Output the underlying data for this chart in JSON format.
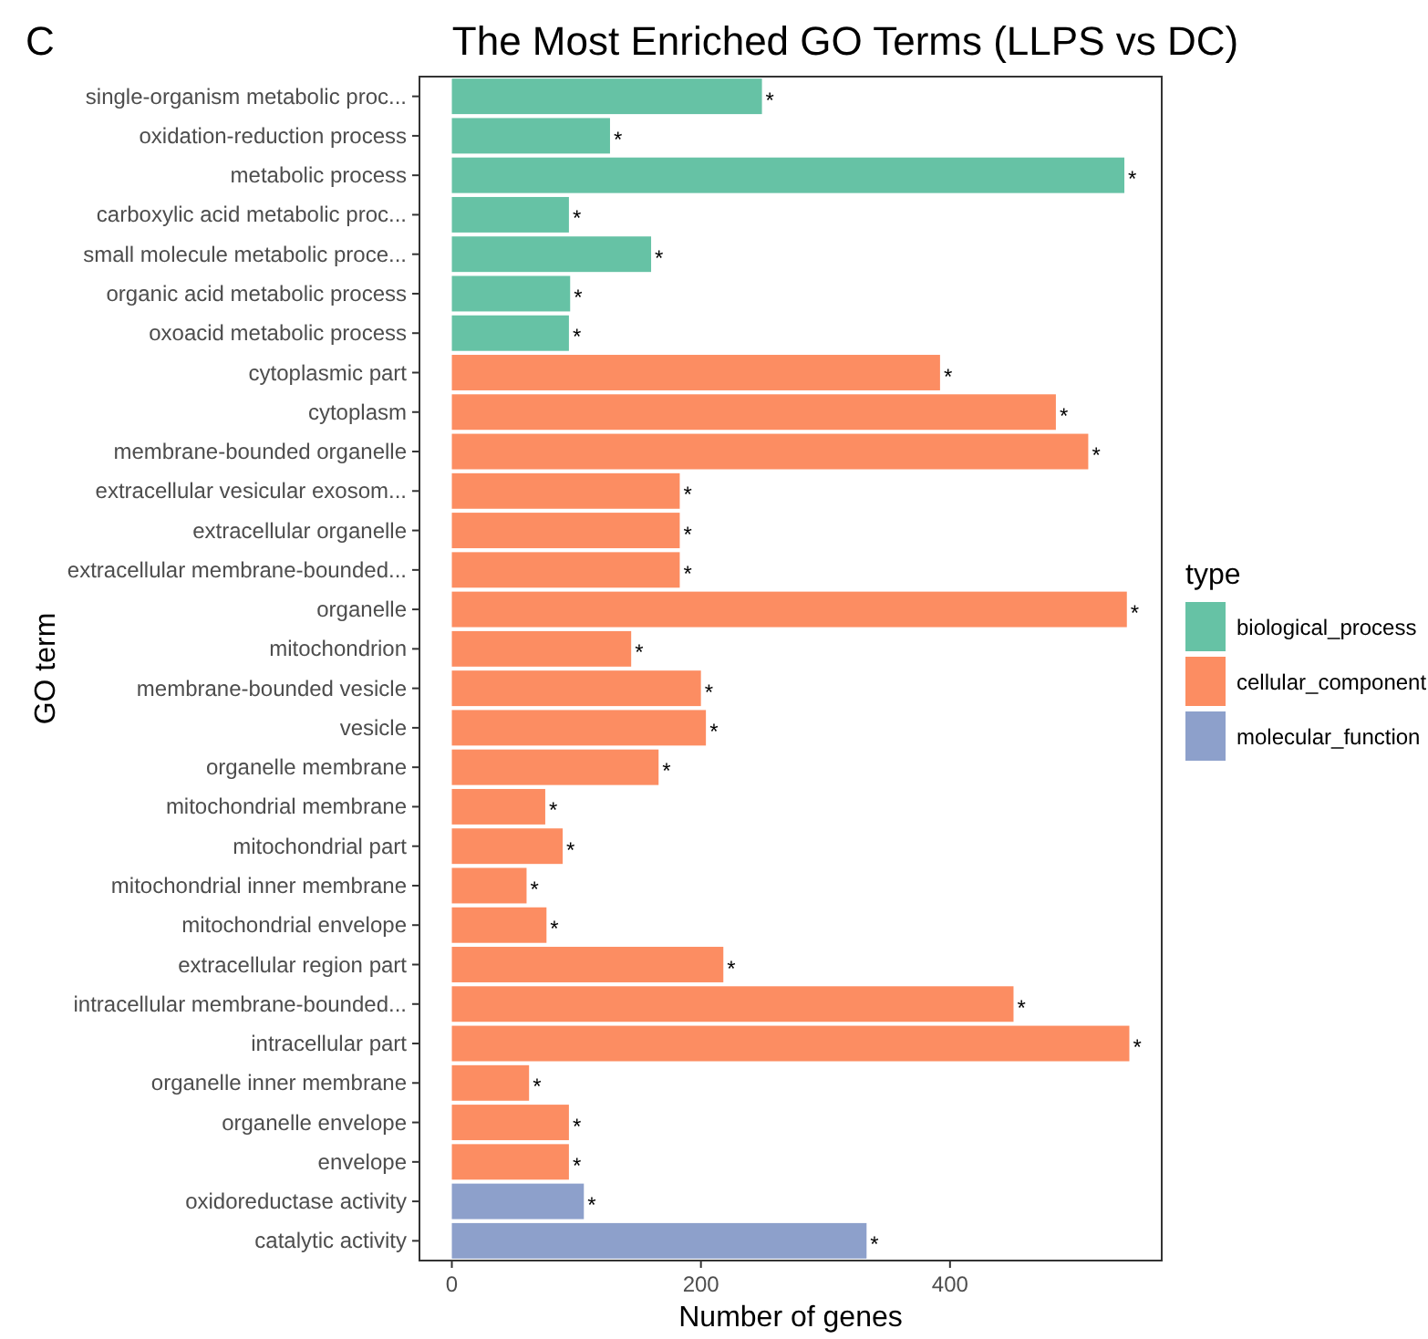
{
  "chart_data": {
    "type": "bar",
    "orientation": "horizontal",
    "title": "The Most Enriched GO Terms (LLPS vs DC)",
    "xlabel": "Number of genes",
    "ylabel": "GO term",
    "legend_title": "type",
    "legend": "right",
    "grid": false,
    "annotations": [
      "C"
    ],
    "categories": [
      "single-organism metabolic proc...",
      "oxidation-reduction process",
      "metabolic process",
      "carboxylic acid metabolic proc...",
      "small molecule metabolic proce...",
      "organic acid metabolic process",
      "oxoacid metabolic process",
      "cytoplasmic part",
      "cytoplasm",
      "membrane-bounded organelle",
      "extracellular vesicular exosom...",
      "extracellular organelle",
      "extracellular membrane-bounded...",
      "organelle",
      "mitochondrion",
      "membrane-bounded vesicle",
      "vesicle",
      "organelle membrane",
      "mitochondrial membrane",
      "mitochondrial part",
      "mitochondrial inner membrane",
      "mitochondrial envelope",
      "extracellular region part",
      "intracellular membrane-bounded...",
      "intracellular part",
      "organelle inner membrane",
      "organelle envelope",
      "envelope",
      "oxidoreductase activity",
      "catalytic activity"
    ],
    "series": [
      {
        "name": "biological_process",
        "color": "#66c2a5",
        "values": [
          249,
          127,
          540,
          94,
          160,
          95,
          94,
          null,
          null,
          null,
          null,
          null,
          null,
          null,
          null,
          null,
          null,
          null,
          null,
          null,
          null,
          null,
          null,
          null,
          null,
          null,
          null,
          null,
          null,
          null
        ],
        "value_labels": [
          "*",
          "*",
          "*",
          "*",
          "*",
          "*",
          "*",
          null,
          null,
          null,
          null,
          null,
          null,
          null,
          null,
          null,
          null,
          null,
          null,
          null,
          null,
          null,
          null,
          null,
          null,
          null,
          null,
          null,
          null,
          null
        ]
      },
      {
        "name": "cellular_component",
        "color": "#fc8d62",
        "values": [
          null,
          null,
          null,
          null,
          null,
          null,
          null,
          392,
          485,
          511,
          183,
          183,
          183,
          542,
          144,
          200,
          204,
          166,
          75,
          89,
          60,
          76,
          218,
          451,
          544,
          62,
          94,
          94,
          null,
          null
        ],
        "value_labels": [
          null,
          null,
          null,
          null,
          null,
          null,
          null,
          "*",
          "*",
          "*",
          "*",
          "*",
          "*",
          "*",
          "*",
          "*",
          "*",
          "*",
          "*",
          "*",
          "*",
          "*",
          "*",
          "*",
          "*",
          "*",
          "*",
          "*",
          null,
          null
        ]
      },
      {
        "name": "molecular_function",
        "color": "#8da0cb",
        "values": [
          null,
          null,
          null,
          null,
          null,
          null,
          null,
          null,
          null,
          null,
          null,
          null,
          null,
          null,
          null,
          null,
          null,
          null,
          null,
          null,
          null,
          null,
          null,
          null,
          null,
          null,
          null,
          null,
          106,
          333
        ],
        "value_labels": [
          null,
          null,
          null,
          null,
          null,
          null,
          null,
          null,
          null,
          null,
          null,
          null,
          null,
          null,
          null,
          null,
          null,
          null,
          null,
          null,
          null,
          null,
          null,
          null,
          null,
          null,
          null,
          null,
          "*",
          "*"
        ]
      }
    ],
    "xlim": [
      -26,
      570
    ],
    "xticks": [
      0,
      200,
      400
    ]
  }
}
